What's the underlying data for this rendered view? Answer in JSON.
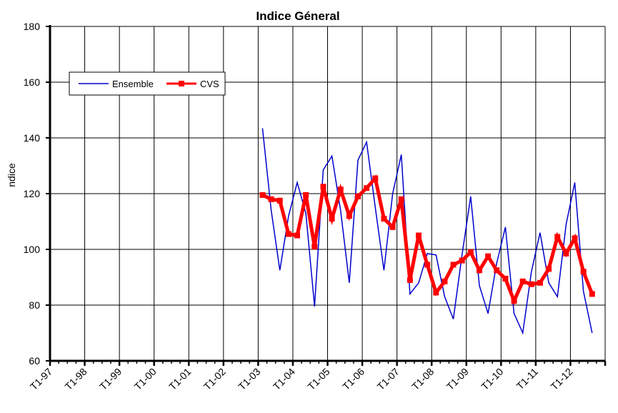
{
  "chart_data": {
    "type": "line",
    "title": "Indice Géneral",
    "xlabel": "",
    "ylabel": "ndice",
    "ylim": [
      60,
      180
    ],
    "yticks": [
      60,
      80,
      100,
      120,
      140,
      160,
      180
    ],
    "x_tick_labels": [
      "T1-97",
      "T1-98",
      "T1-99",
      "T1-00",
      "T1-01",
      "T1-02",
      "T1-03",
      "T1-04",
      "T1-05",
      "T1-06",
      "T1-07",
      "T1-08",
      "T1-09",
      "T1-10",
      "T1-11",
      "T1-12"
    ],
    "grid": true,
    "legend_placement": "top-left",
    "series": [
      {
        "name": "Ensemble",
        "color": "#0000cc",
        "marker": "none",
        "start_quarter": "T1-03",
        "values": [
          143.5,
          114,
          92.5,
          112,
          124,
          113,
          79.5,
          128.5,
          133.5,
          114,
          88,
          132,
          138.5,
          115,
          92.5,
          120,
          134,
          84,
          88,
          98.5,
          98,
          83,
          75,
          98,
          119,
          87,
          77,
          95,
          108,
          77,
          70,
          92,
          106,
          88,
          83,
          109,
          124,
          85,
          70
        ]
      },
      {
        "name": "CVS",
        "color": "#ff0000",
        "marker": "square",
        "start_quarter": "T1-03",
        "values": [
          119.5,
          118,
          117.5,
          105.5,
          105,
          119.5,
          101,
          122.5,
          111,
          121.5,
          112,
          119,
          122,
          125.5,
          111,
          108,
          118,
          89,
          105,
          94.5,
          84.5,
          88.5,
          94.5,
          96,
          99,
          92.5,
          97.5,
          92.5,
          89.5,
          81.5,
          88.5,
          87.5,
          88,
          93,
          104.5,
          98.5,
          104,
          92,
          84
        ]
      }
    ]
  }
}
